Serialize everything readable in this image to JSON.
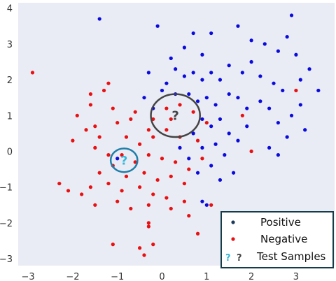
{
  "chart_data": {
    "type": "scatter",
    "xlim": [
      -3.2,
      3.8
    ],
    "ylim": [
      -3.2,
      4.2
    ],
    "x_ticks": [
      -3,
      -2,
      -1,
      0,
      1,
      2,
      3
    ],
    "y_ticks": [
      -3,
      -2,
      -1,
      0,
      1,
      2,
      3,
      4
    ],
    "grid": false,
    "legend_position": "bottom-right",
    "colors": {
      "positive": "#0a0adc",
      "negative": "#e81010",
      "plot_bg": "#e9ebf5",
      "test_circle_dark": "#444444",
      "test_circle_teal": "#1f7fa8",
      "test_qmark_teal": "#36b7d8",
      "legend_border": "#143c49"
    },
    "series": [
      {
        "name": "Positive",
        "points": [
          [
            -1.4,
            3.7
          ],
          [
            -0.1,
            3.5
          ],
          [
            0.2,
            2.6
          ],
          [
            0.5,
            2.9
          ],
          [
            0.9,
            2.7
          ],
          [
            0.7,
            3.3
          ],
          [
            1.1,
            3.3
          ],
          [
            1.7,
            3.5
          ],
          [
            2.0,
            3.1
          ],
          [
            2.3,
            3.0
          ],
          [
            2.6,
            2.8
          ],
          [
            2.8,
            3.2
          ],
          [
            2.9,
            3.8
          ],
          [
            3.0,
            2.7
          ],
          [
            3.3,
            2.3
          ],
          [
            3.5,
            1.7
          ],
          [
            3.1,
            2.0
          ],
          [
            2.7,
            1.7
          ],
          [
            2.5,
            1.9
          ],
          [
            2.2,
            2.1
          ],
          [
            2.0,
            2.5
          ],
          [
            1.8,
            2.2
          ],
          [
            1.5,
            2.4
          ],
          [
            1.3,
            2.0
          ],
          [
            1.1,
            2.2
          ],
          [
            0.9,
            2.0
          ],
          [
            0.7,
            2.2
          ],
          [
            0.5,
            2.1
          ],
          [
            0.3,
            2.3
          ],
          [
            0.1,
            1.9
          ],
          [
            -0.3,
            2.2
          ],
          [
            -0.4,
            1.5
          ],
          [
            -0.2,
            1.2
          ],
          [
            0.0,
            1.7
          ],
          [
            0.3,
            1.6
          ],
          [
            0.6,
            1.6
          ],
          [
            0.8,
            1.4
          ],
          [
            1.0,
            1.5
          ],
          [
            1.2,
            1.3
          ],
          [
            1.5,
            1.6
          ],
          [
            1.7,
            1.5
          ],
          [
            1.9,
            1.2
          ],
          [
            2.2,
            1.4
          ],
          [
            2.4,
            1.2
          ],
          [
            2.6,
            0.8
          ],
          [
            2.9,
            1.0
          ],
          [
            3.1,
            1.3
          ],
          [
            3.2,
            0.6
          ],
          [
            2.8,
            0.4
          ],
          [
            2.4,
            0.1
          ],
          [
            2.6,
            -0.1
          ],
          [
            1.9,
            0.7
          ],
          [
            1.7,
            0.3
          ],
          [
            1.5,
            0.5
          ],
          [
            1.3,
            0.9
          ],
          [
            1.1,
            0.7
          ],
          [
            0.9,
            0.9
          ],
          [
            0.7,
            0.5
          ],
          [
            0.9,
            0.1
          ],
          [
            1.2,
            0.2
          ],
          [
            1.4,
            -0.1
          ],
          [
            1.1,
            -0.4
          ],
          [
            0.8,
            -0.6
          ],
          [
            0.6,
            -0.2
          ],
          [
            0.4,
            0.1
          ],
          [
            1.3,
            -0.8
          ],
          [
            1.6,
            -0.6
          ],
          [
            0.9,
            -1.4
          ],
          [
            1.0,
            -1.5
          ],
          [
            -1.0,
            -0.2
          ]
        ]
      },
      {
        "name": "Negative",
        "points": [
          [
            -2.9,
            2.2
          ],
          [
            -1.6,
            1.3
          ],
          [
            -1.6,
            1.6
          ],
          [
            -1.2,
            1.9
          ],
          [
            -0.6,
            1.1
          ],
          [
            -0.2,
            0.9
          ],
          [
            0.1,
            1.2
          ],
          [
            0.4,
            1.3
          ],
          [
            0.7,
            1.1
          ],
          [
            1.0,
            0.8
          ],
          [
            -1.9,
            1.0
          ],
          [
            -1.7,
            0.6
          ],
          [
            -1.4,
            0.4
          ],
          [
            -1.0,
            0.8
          ],
          [
            -0.8,
            0.4
          ],
          [
            -0.5,
            0.2
          ],
          [
            -0.2,
            0.4
          ],
          [
            0.1,
            0.6
          ],
          [
            0.4,
            0.4
          ],
          [
            0.8,
            0.3
          ],
          [
            -2.0,
            0.3
          ],
          [
            -1.5,
            0.1
          ],
          [
            -1.2,
            -0.1
          ],
          [
            -0.9,
            -0.1
          ],
          [
            -0.6,
            -0.3
          ],
          [
            -0.3,
            -0.1
          ],
          [
            0.0,
            -0.2
          ],
          [
            0.3,
            -0.3
          ],
          [
            0.6,
            -0.5
          ],
          [
            -1.4,
            -0.6
          ],
          [
            -1.1,
            -0.4
          ],
          [
            -0.8,
            -0.7
          ],
          [
            -0.4,
            -0.6
          ],
          [
            -0.1,
            -0.8
          ],
          [
            0.2,
            -0.7
          ],
          [
            0.5,
            -0.9
          ],
          [
            -2.3,
            -0.9
          ],
          [
            -1.6,
            -1.0
          ],
          [
            -1.2,
            -0.9
          ],
          [
            -0.9,
            -1.1
          ],
          [
            -0.5,
            -1.0
          ],
          [
            -0.2,
            -1.2
          ],
          [
            0.1,
            -1.3
          ],
          [
            0.5,
            -1.4
          ],
          [
            -1.5,
            -1.5
          ],
          [
            -1.0,
            -1.4
          ],
          [
            -0.7,
            -1.6
          ],
          [
            -0.3,
            -1.5
          ],
          [
            0.2,
            -1.6
          ],
          [
            0.6,
            -1.8
          ],
          [
            -0.3,
            -2.0
          ],
          [
            -0.3,
            -2.1
          ],
          [
            -0.4,
            -2.9
          ],
          [
            -0.2,
            -2.6
          ],
          [
            -0.5,
            -2.7
          ],
          [
            -1.1,
            -2.6
          ],
          [
            0.8,
            -2.3
          ],
          [
            1.1,
            -1.5
          ],
          [
            -1.8,
            -1.2
          ],
          [
            -2.1,
            -1.1
          ],
          [
            -1.5,
            0.7
          ],
          [
            -1.1,
            1.2
          ],
          [
            -0.3,
            0.6
          ],
          [
            0.2,
            0.9
          ],
          [
            3.0,
            1.7
          ],
          [
            2.0,
            0.0
          ],
          [
            1.8,
            1.0
          ],
          [
            -1.3,
            1.7
          ],
          [
            -0.7,
            0.9
          ],
          [
            0.9,
            -0.2
          ]
        ]
      }
    ],
    "test_samples": [
      {
        "x": 0.3,
        "y": 1.0,
        "circle_rx": 0.55,
        "circle_ry": 0.6,
        "color_key": "test_circle_dark"
      },
      {
        "x": -0.85,
        "y": -0.25,
        "circle_rx": 0.3,
        "circle_ry": 0.33,
        "color_key": "test_circle_teal"
      }
    ],
    "legend": {
      "positive": "Positive",
      "negative": "Negative",
      "test_samples": "Test Samples"
    }
  }
}
